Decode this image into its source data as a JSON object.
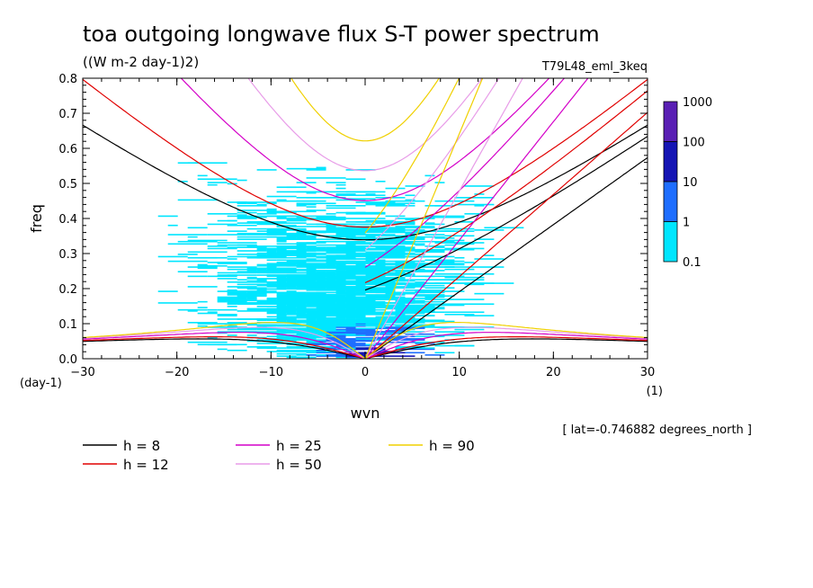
{
  "chart_data": {
    "type": "heatmap",
    "title": "toa outgoing longwave flux S-T power spectrum",
    "subtitle": "((W m-2 day-1)2)",
    "run_label": "T79L48_eml_3keq",
    "xlabel": "wvn",
    "xunit": "(1)",
    "ylabel": "freq",
    "yunit": "(day-1)",
    "xlim": [
      -30,
      30
    ],
    "ylim": [
      0,
      0.8
    ],
    "xticks": [
      "-30",
      "-20",
      "-10",
      "0",
      "10",
      "20",
      "30"
    ],
    "yticks": [
      "0.0",
      "0.1",
      "0.2",
      "0.3",
      "0.4",
      "0.5",
      "0.6",
      "0.7",
      "0.8"
    ],
    "footnote": "[ lat=-0.746882 degrees_north ]",
    "colorbar": {
      "labels": [
        "1000",
        "100",
        "10",
        "1",
        "0.1"
      ],
      "colors": [
        "#5a1fb4",
        "#1515b4",
        "#1e6eff",
        "#00e6ff"
      ]
    },
    "power_regions": [
      {
        "level": "0.1-1",
        "description_shape": "broad cloud",
        "x_range": [
          -21,
          12
        ],
        "y_range": [
          0.0,
          0.56
        ]
      },
      {
        "level": "1-10",
        "x_range": [
          -8,
          6
        ],
        "y_range": [
          0.0,
          0.12
        ]
      },
      {
        "level": "10-100",
        "x_range": [
          -3,
          2
        ],
        "y_range": [
          0.0,
          0.05
        ]
      }
    ],
    "dispersion_curves": [
      {
        "name": "h =  8",
        "color": "#000000"
      },
      {
        "name": "h = 12",
        "color": "#e00000"
      },
      {
        "name": "h = 25",
        "color": "#d400c8"
      },
      {
        "name": "h = 50",
        "color": "#e89ce8"
      },
      {
        "name": "h = 90",
        "color": "#f0d000"
      }
    ],
    "grid": false
  }
}
